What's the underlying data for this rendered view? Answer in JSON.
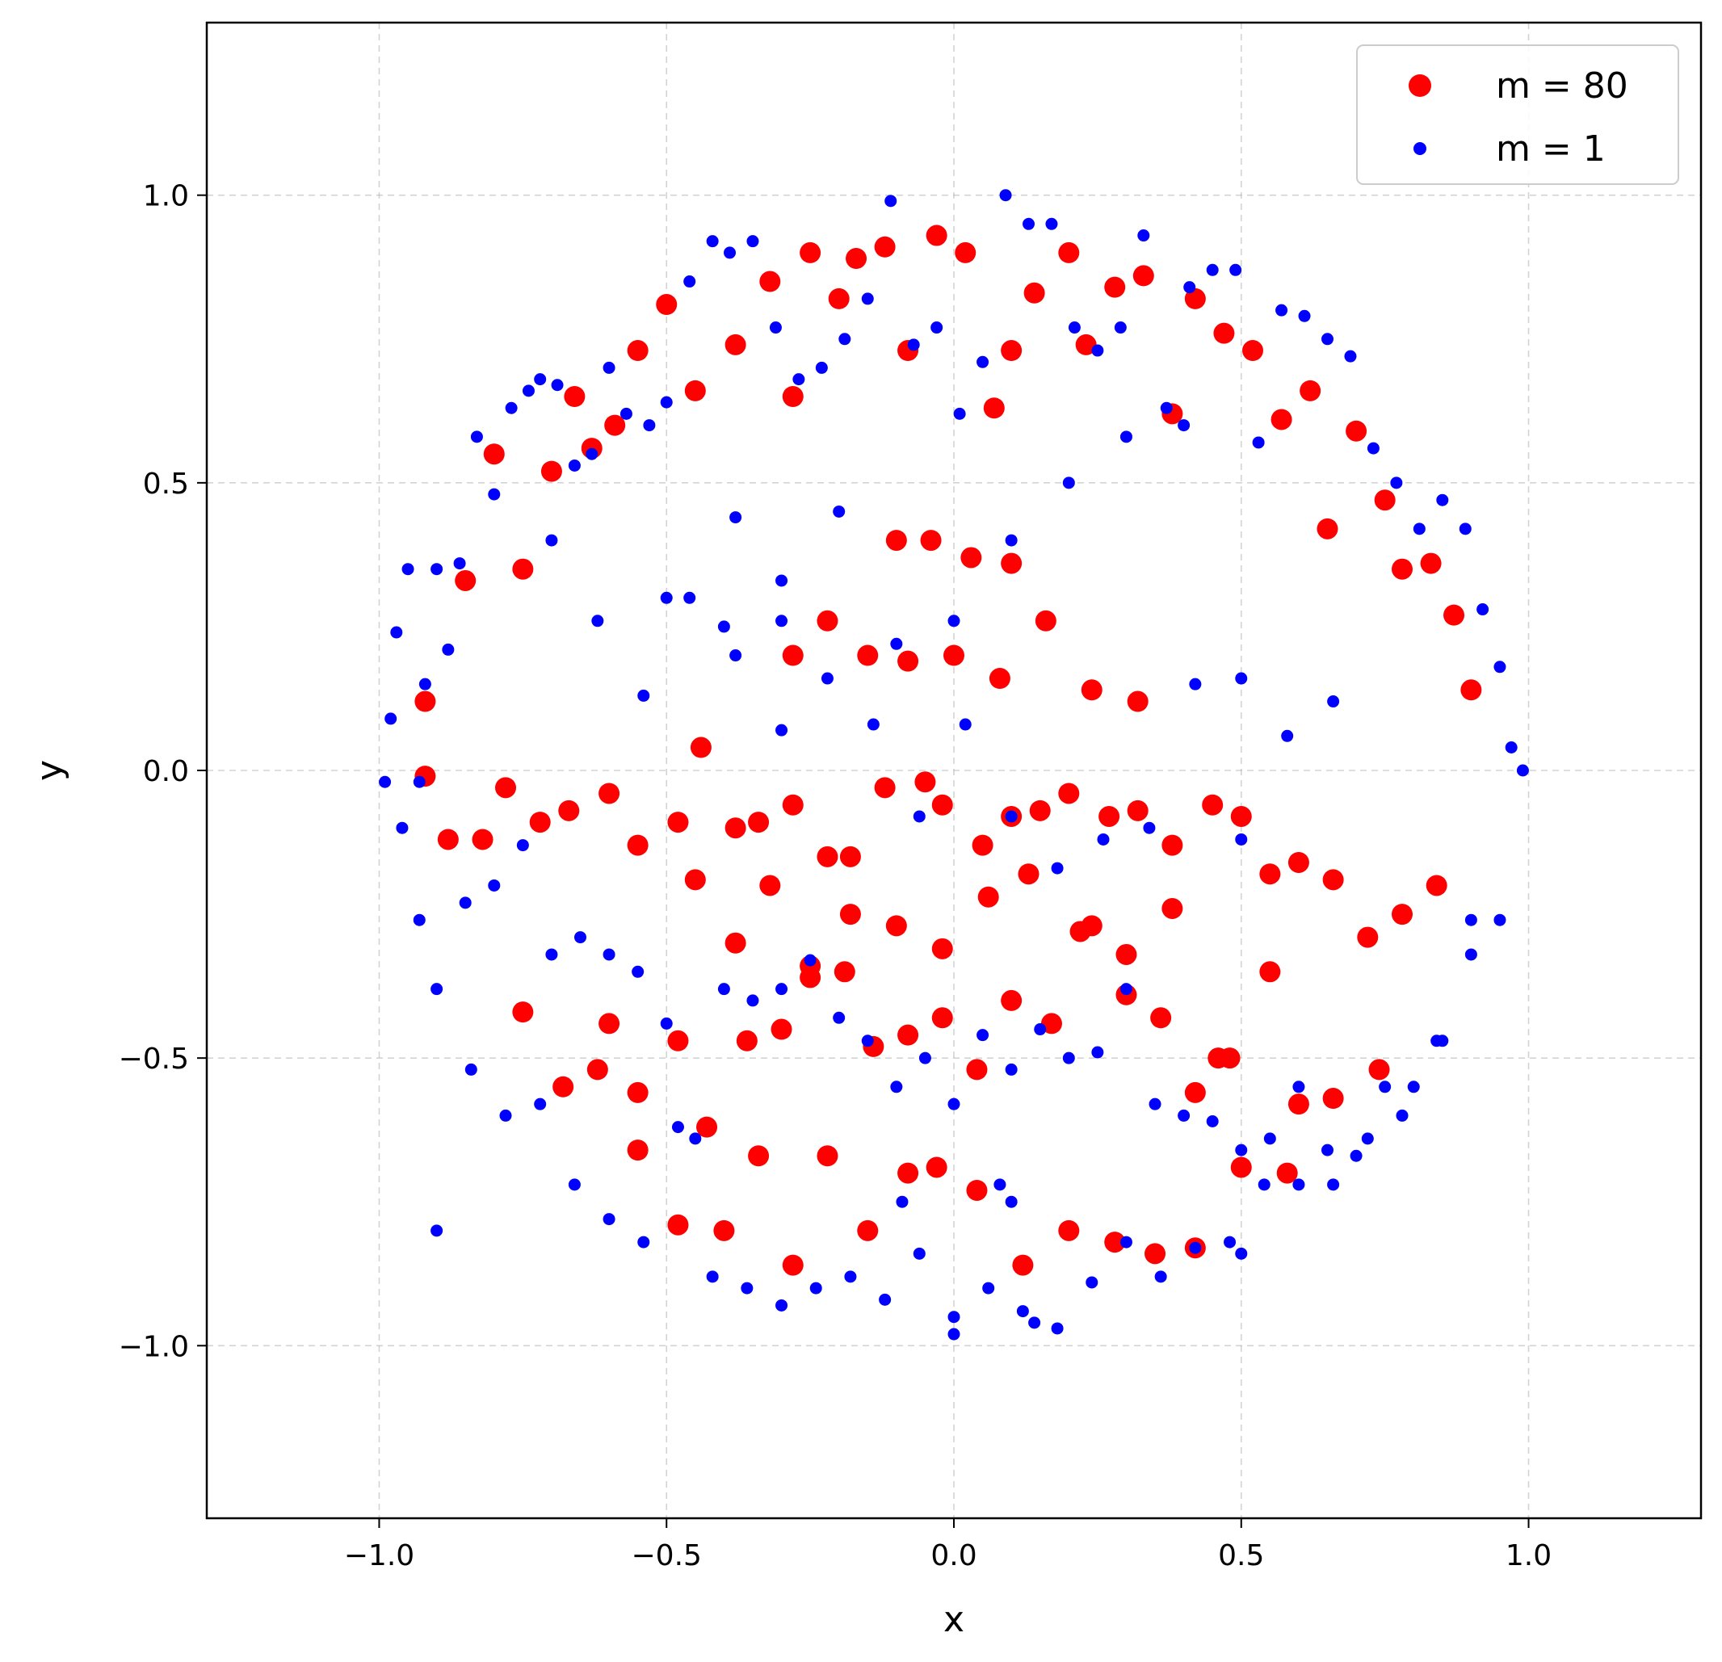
{
  "chart_data": {
    "type": "scatter",
    "title": "",
    "xlabel": "x",
    "ylabel": "y",
    "xlim": [
      -1.3,
      1.3
    ],
    "ylim": [
      -1.3,
      1.3
    ],
    "grid": true,
    "legend_position": "top-right",
    "xticks": [
      -1.0,
      -0.5,
      0.0,
      0.5,
      1.0
    ],
    "yticks": [
      -1.0,
      -0.5,
      0.0,
      0.5,
      1.0
    ],
    "xtick_labels": [
      "−1.0",
      "−0.5",
      "0.0",
      "0.5",
      "1.0"
    ],
    "ytick_labels": [
      "−1.0",
      "−0.5",
      "0.0",
      "0.5",
      "1.0"
    ],
    "series": [
      {
        "name": "m = 80",
        "color": "#ff0000",
        "marker_size": "large",
        "x": [
          -0.92,
          -0.92,
          -0.85,
          -0.8,
          -0.75,
          -0.7,
          -0.66,
          -0.63,
          -0.59,
          -0.55,
          -0.5,
          -0.45,
          -0.38,
          -0.32,
          -0.28,
          -0.25,
          -0.2,
          -0.17,
          -0.12,
          -0.08,
          -0.03,
          0.02,
          0.07,
          0.1,
          0.14,
          0.2,
          0.23,
          0.28,
          0.33,
          0.38,
          0.42,
          0.47,
          0.52,
          0.57,
          0.62,
          0.65,
          0.7,
          0.75,
          0.78,
          0.83,
          0.87,
          0.9,
          -0.88,
          -0.82,
          -0.78,
          -0.72,
          -0.67,
          -0.6,
          -0.55,
          -0.48,
          -0.44,
          -0.38,
          -0.34,
          -0.28,
          -0.22,
          -0.18,
          -0.12,
          -0.05,
          -0.02,
          0.05,
          0.1,
          0.15,
          0.2,
          0.27,
          0.32,
          0.38,
          0.45,
          0.5,
          0.55,
          0.6,
          0.66,
          0.72,
          0.78,
          0.84,
          -0.75,
          -0.68,
          -0.62,
          -0.55,
          -0.48,
          -0.43,
          -0.36,
          -0.3,
          -0.25,
          -0.19,
          -0.14,
          -0.08,
          -0.02,
          0.04,
          0.1,
          0.17,
          0.24,
          0.3,
          0.36,
          0.42,
          0.48,
          0.55,
          0.6,
          0.66,
          0.74,
          -0.6,
          -0.55,
          -0.48,
          -0.4,
          -0.34,
          -0.28,
          -0.22,
          -0.15,
          -0.08,
          -0.03,
          0.04,
          0.12,
          0.2,
          0.28,
          0.35,
          0.42,
          0.5,
          0.58,
          -0.45,
          -0.38,
          -0.32,
          -0.25,
          -0.18,
          -0.1,
          -0.02,
          0.06,
          0.13,
          0.22,
          0.3,
          0.38,
          0.46,
          -0.28,
          -0.22,
          -0.15,
          -0.08,
          0.0,
          0.08,
          0.16,
          0.24,
          0.32,
          -0.1,
          -0.04,
          0.03,
          0.1
        ],
        "y": [
          -0.01,
          0.12,
          0.33,
          0.55,
          0.35,
          0.52,
          0.65,
          0.56,
          0.6,
          0.73,
          0.81,
          0.66,
          0.74,
          0.85,
          0.65,
          0.9,
          0.82,
          0.89,
          0.91,
          0.73,
          0.93,
          0.9,
          0.63,
          0.73,
          0.83,
          0.9,
          0.74,
          0.84,
          0.86,
          0.62,
          0.82,
          0.76,
          0.73,
          0.61,
          0.66,
          0.42,
          0.59,
          0.47,
          0.35,
          0.36,
          0.27,
          0.14,
          -0.12,
          -0.12,
          -0.03,
          -0.09,
          -0.07,
          -0.04,
          -0.13,
          -0.09,
          0.04,
          -0.1,
          -0.09,
          -0.06,
          -0.15,
          -0.15,
          -0.03,
          -0.02,
          -0.06,
          -0.13,
          -0.08,
          -0.07,
          -0.04,
          -0.08,
          -0.07,
          -0.13,
          -0.06,
          -0.08,
          -0.18,
          -0.16,
          -0.19,
          -0.29,
          -0.25,
          -0.2,
          -0.42,
          -0.55,
          -0.52,
          -0.56,
          -0.47,
          -0.62,
          -0.47,
          -0.45,
          -0.36,
          -0.35,
          -0.48,
          -0.46,
          -0.43,
          -0.52,
          -0.4,
          -0.44,
          -0.27,
          -0.39,
          -0.43,
          -0.56,
          -0.5,
          -0.35,
          -0.58,
          -0.57,
          -0.52,
          -0.44,
          -0.66,
          -0.79,
          -0.8,
          -0.67,
          -0.86,
          -0.67,
          -0.8,
          -0.7,
          -0.69,
          -0.73,
          -0.86,
          -0.8,
          -0.82,
          -0.84,
          -0.83,
          -0.69,
          -0.7,
          -0.19,
          -0.3,
          -0.2,
          -0.34,
          -0.25,
          -0.27,
          -0.31,
          -0.22,
          -0.18,
          -0.28,
          -0.32,
          -0.24,
          -0.5,
          0.2,
          0.26,
          0.2,
          0.19,
          0.2,
          0.16,
          0.26,
          0.14,
          0.12,
          0.4,
          0.4,
          0.37,
          0.36
        ]
      },
      {
        "name": "m = 1",
        "color": "#0000ff",
        "marker_size": "small",
        "x": [
          -0.99,
          -0.98,
          -0.97,
          -0.95,
          -0.93,
          -0.92,
          -0.9,
          -0.88,
          -0.86,
          -0.83,
          -0.8,
          -0.77,
          -0.74,
          -0.72,
          -0.69,
          -0.66,
          -0.63,
          -0.6,
          -0.57,
          -0.53,
          -0.5,
          -0.46,
          -0.42,
          -0.39,
          -0.35,
          -0.31,
          -0.27,
          -0.23,
          -0.19,
          -0.15,
          -0.11,
          -0.07,
          -0.03,
          0.01,
          0.05,
          0.09,
          0.13,
          0.17,
          0.21,
          0.25,
          0.29,
          0.33,
          0.37,
          0.41,
          0.45,
          0.49,
          0.53,
          0.57,
          0.61,
          0.65,
          0.69,
          0.73,
          0.77,
          0.81,
          0.85,
          0.89,
          0.92,
          0.95,
          0.97,
          0.99,
          -0.96,
          -0.93,
          -0.9,
          -0.85,
          -0.8,
          -0.75,
          -0.7,
          -0.65,
          -0.6,
          -0.55,
          -0.5,
          -0.45,
          -0.4,
          -0.35,
          -0.3,
          -0.25,
          -0.2,
          -0.15,
          -0.1,
          -0.05,
          0.0,
          0.05,
          0.1,
          0.15,
          0.2,
          0.25,
          0.3,
          0.35,
          0.4,
          0.45,
          0.5,
          0.55,
          0.6,
          0.65,
          0.7,
          0.75,
          0.8,
          0.85,
          0.9,
          0.95,
          -0.9,
          -0.84,
          -0.78,
          -0.72,
          -0.66,
          -0.6,
          -0.54,
          -0.48,
          -0.42,
          -0.36,
          -0.3,
          -0.24,
          -0.18,
          -0.12,
          -0.06,
          0.0,
          0.06,
          0.12,
          0.18,
          0.24,
          0.3,
          0.36,
          0.42,
          0.48,
          0.54,
          0.6,
          0.66,
          0.72,
          0.78,
          0.84,
          0.9,
          -0.7,
          -0.62,
          -0.54,
          -0.46,
          -0.38,
          -0.3,
          -0.22,
          -0.14,
          -0.06,
          0.02,
          0.1,
          0.18,
          0.26,
          0.34,
          0.42,
          0.5,
          0.58,
          0.66,
          -0.38,
          -0.3,
          -0.2,
          -0.1,
          0.0,
          0.1,
          0.2,
          0.3,
          0.4,
          -0.09,
          0.08,
          0.1,
          -0.4,
          -0.3,
          0.0,
          0.14,
          0.5,
          -0.5,
          0.5
        ],
        "y": [
          -0.02,
          0.09,
          0.24,
          0.35,
          -0.02,
          0.15,
          0.35,
          0.21,
          0.36,
          0.58,
          0.48,
          0.63,
          0.66,
          0.68,
          0.67,
          0.53,
          0.55,
          0.7,
          0.62,
          0.6,
          0.64,
          0.85,
          0.92,
          0.9,
          0.92,
          0.77,
          0.68,
          0.7,
          0.75,
          0.82,
          0.99,
          0.74,
          0.77,
          0.62,
          0.71,
          1.0,
          0.95,
          0.95,
          0.77,
          0.73,
          0.77,
          0.93,
          0.63,
          0.84,
          0.87,
          0.87,
          0.57,
          0.8,
          0.79,
          0.75,
          0.72,
          0.56,
          0.5,
          0.42,
          0.47,
          0.42,
          0.28,
          0.18,
          0.04,
          0.0,
          -0.1,
          -0.26,
          -0.38,
          -0.23,
          -0.2,
          -0.13,
          -0.32,
          -0.29,
          -0.32,
          -0.35,
          -0.44,
          -0.64,
          -0.38,
          -0.4,
          -0.38,
          -0.33,
          -0.43,
          -0.47,
          -0.55,
          -0.5,
          -0.58,
          -0.46,
          -0.52,
          -0.45,
          -0.5,
          -0.49,
          -0.38,
          -0.58,
          -0.6,
          -0.61,
          -0.66,
          -0.64,
          -0.55,
          -0.66,
          -0.67,
          -0.55,
          -0.55,
          -0.47,
          -0.32,
          -0.26,
          -0.8,
          -0.52,
          -0.6,
          -0.58,
          -0.72,
          -0.78,
          -0.82,
          -0.62,
          -0.88,
          -0.9,
          -0.93,
          -0.9,
          -0.88,
          -0.92,
          -0.84,
          -0.95,
          -0.9,
          -0.94,
          -0.97,
          -0.89,
          -0.82,
          -0.88,
          -0.83,
          -0.82,
          -0.72,
          -0.72,
          -0.72,
          -0.64,
          -0.6,
          -0.47,
          -0.26,
          0.4,
          0.26,
          0.13,
          0.3,
          0.2,
          0.07,
          0.16,
          0.08,
          -0.08,
          0.08,
          -0.08,
          -0.17,
          -0.12,
          -0.1,
          0.15,
          -0.12,
          0.06,
          0.12,
          0.44,
          0.33,
          0.45,
          0.22,
          0.26,
          0.4,
          0.5,
          0.58,
          0.6,
          -0.75,
          -0.72,
          -0.75,
          0.25,
          0.26,
          -0.98,
          -0.96,
          -0.84,
          0.3,
          0.16
        ]
      }
    ]
  }
}
